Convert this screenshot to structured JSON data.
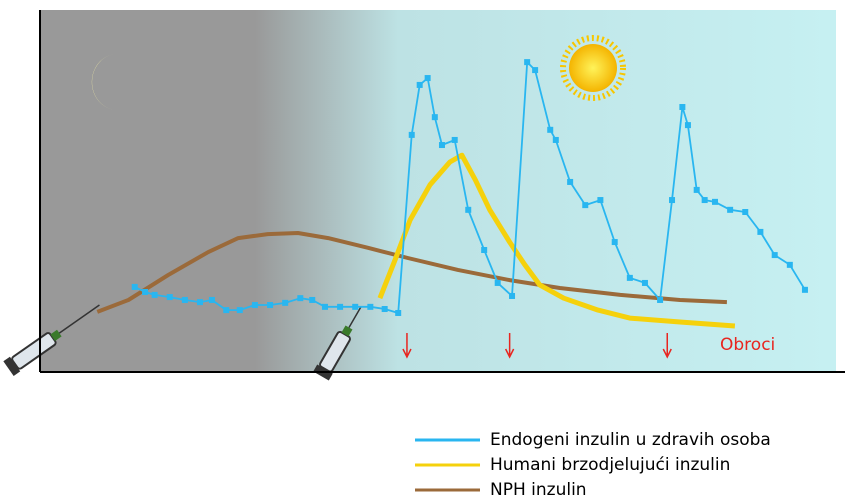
{
  "chart_data": {
    "type": "line",
    "xlim": [
      0,
      100
    ],
    "ylim": [
      0,
      100
    ],
    "series": [
      {
        "name": "Endogeni inzulin u zdravih osoba",
        "color": "#29b6f0",
        "marker": "square",
        "x": [
          11.9,
          13.2,
          14.4,
          16.3,
          18.2,
          20.1,
          21.6,
          23.4,
          25.1,
          27.0,
          28.9,
          30.8,
          32.7,
          34.2,
          35.8,
          37.7,
          39.6,
          41.5,
          43.3,
          45.0,
          46.7,
          47.7,
          48.7,
          49.6,
          50.5,
          52.1,
          53.8,
          55.8,
          57.5,
          59.3,
          61.2,
          62.2,
          64.1,
          64.8,
          66.6,
          68.5,
          70.4,
          72.2,
          74.1,
          76.0,
          77.9,
          79.4,
          80.7,
          81.4,
          82.5,
          83.5,
          84.8,
          86.7,
          88.6,
          90.5,
          92.3,
          94.2,
          96.1
        ],
        "values": [
          23.5,
          22.1,
          21.3,
          20.7,
          19.9,
          19.3,
          19.9,
          17.1,
          17.1,
          18.5,
          18.5,
          19.1,
          20.4,
          19.9,
          18.0,
          18.0,
          18.0,
          18.0,
          17.4,
          16.3,
          65.5,
          79.3,
          81.2,
          70.4,
          62.7,
          64.1,
          44.8,
          33.7,
          24.6,
          21.0,
          85.6,
          83.4,
          66.9,
          64.1,
          52.5,
          46.1,
          47.5,
          35.9,
          26.0,
          24.6,
          19.9,
          47.5,
          73.2,
          68.2,
          50.3,
          47.5,
          47.0,
          44.8,
          44.2,
          38.7,
          32.3,
          29.6,
          22.7
        ]
      },
      {
        "name": "Humani brzodjelujući inzulin",
        "color": "#f5d10c",
        "x": [
          42.7,
          44.6,
          46.5,
          49.0,
          51.5,
          53.0,
          54.7,
          56.5,
          59.0,
          60.9,
          62.8,
          65.8,
          70.1,
          74.1,
          80.4,
          87.3
        ],
        "values": [
          20.4,
          30.9,
          42.0,
          51.7,
          58.0,
          59.9,
          53.0,
          44.8,
          35.9,
          29.6,
          24.0,
          20.4,
          17.1,
          14.9,
          13.8,
          12.7
        ]
      },
      {
        "name": "NPH inzulin",
        "color": "#9b6a3a",
        "x": [
          7.2,
          11.1,
          16.1,
          21.1,
          24.9,
          28.6,
          32.4,
          36.2,
          41.2,
          46.2,
          52.5,
          59.0,
          65.3,
          72.9,
          80.4,
          86.3
        ],
        "values": [
          16.6,
          19.9,
          26.8,
          33.1,
          37.0,
          38.1,
          38.4,
          37.0,
          34.3,
          31.5,
          28.2,
          25.4,
          23.2,
          21.3,
          19.9,
          19.3
        ]
      }
    ],
    "meals": {
      "label": "Obroci",
      "color": "#e8251f",
      "x": [
        46.1,
        59.0,
        78.8
      ]
    }
  }
}
